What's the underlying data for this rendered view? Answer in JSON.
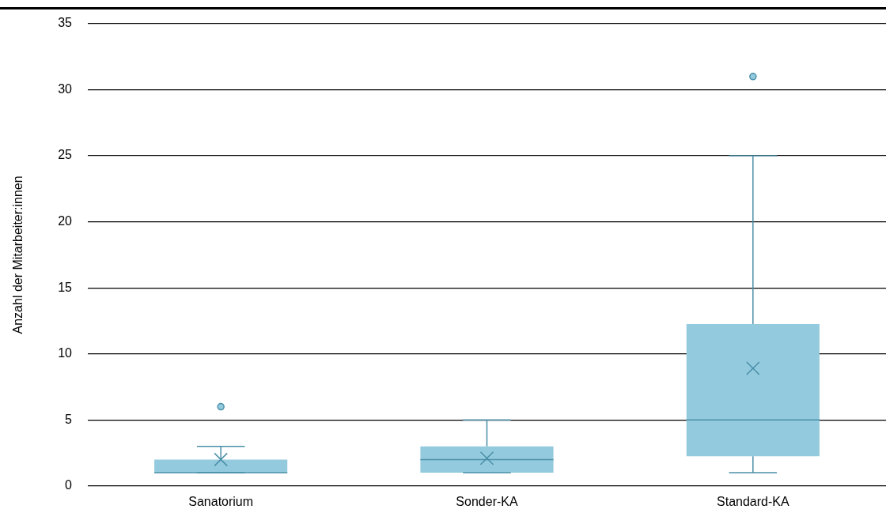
{
  "chart_data": {
    "type": "box",
    "ylabel": "Anzahl der Mitarbeiter:innen",
    "categories": [
      "Sanatorium",
      "Sonder-KA",
      "Standard-KA"
    ],
    "boxes": [
      {
        "low": 1,
        "q1": 1,
        "median": 1,
        "q3": 2,
        "high": 3,
        "mean": 2,
        "outliers": [
          6
        ]
      },
      {
        "low": 1,
        "q1": 1,
        "median": 2,
        "q3": 3,
        "high": 5,
        "mean": 2.1
      },
      {
        "low": 1,
        "q1": 2.25,
        "median": 5,
        "q3": 12.25,
        "high": 25,
        "mean": 8.9,
        "outliers": [
          31
        ]
      }
    ],
    "color": "#94cade",
    "ylim": [
      0,
      35
    ],
    "yticks": [
      0,
      5,
      10,
      15,
      20,
      25,
      30,
      35
    ],
    "grid": "y",
    "legend": false
  }
}
